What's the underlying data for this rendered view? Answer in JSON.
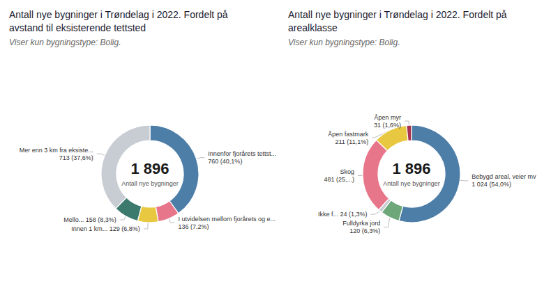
{
  "chart_data": [
    {
      "type": "donut",
      "title": "Antall nye bygninger i Trøndelag i 2022. Fordelt på\navstand til eksisterende tettsted",
      "subtitle": "Viser kun bygningstype: Bolig.",
      "annotations": [
        "1 896",
        "Antall nye bygninger"
      ],
      "categories": [
        "Innenfor fjorårets tettst...\n760 (40,1%)",
        "I utvidelsen mellom fjorårets og e...\n136 (7,2%)",
        "Innen 1 km... 129 (6,8%)",
        "Mello... 158 (8,3%)",
        "Mer enn 3 km fra eksiste...\n713 (37,6%)"
      ],
      "values": [
        760,
        136,
        129,
        158,
        713
      ],
      "colors": [
        "#4d7ea8",
        "#e8768a",
        "#e8c840",
        "#3d7a6e",
        "#c8cdd4"
      ]
    },
    {
      "type": "donut",
      "title": "Antall nye bygninger i Trøndelag i 2022. Fordelt på\narealklasse",
      "subtitle": "Viser kun bygningstype: Bolig.",
      "annotations": [
        "1 896",
        "Antall nye bygninger"
      ],
      "categories": [
        "Bebygd areal, veier mv\n1 024 (54,0%)",
        "Fulldyrka jord\n120 (6,3%)",
        "Ikke f... 24 (1,3%)",
        "Skog\n481 (25,...)",
        "Åpen fastmark\n211 (11,1%)",
        "Åpen myr\n31 (1,6%)"
      ],
      "values": [
        1024,
        120,
        24,
        481,
        211,
        31
      ],
      "colors": [
        "#4d7ea8",
        "#6ea87a",
        "#c8cdd4",
        "#e8768a",
        "#e8c840",
        "#a83050"
      ]
    }
  ]
}
